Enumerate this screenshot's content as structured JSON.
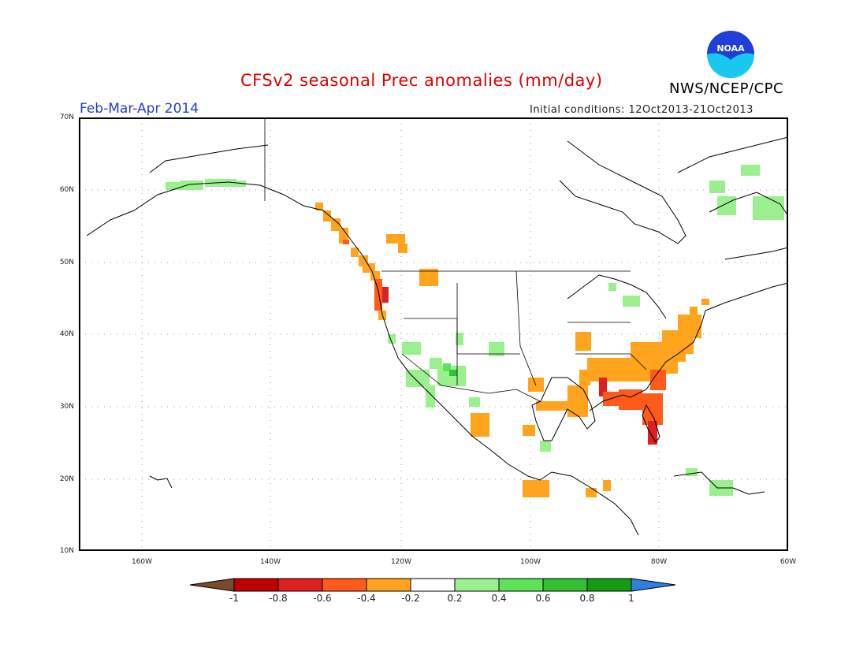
{
  "header": {
    "title": "CFSv2 seasonal Prec anomalies (mm/day)",
    "agency": "NWS/NCEP/CPC",
    "period": "Feb-Mar-Apr 2014",
    "initial_conditions": "Initial conditions: 12Oct2013-21Oct2013",
    "logo_text": "NOAA"
  },
  "axes": {
    "lat_labels": [
      "70N",
      "60N",
      "50N",
      "40N",
      "30N",
      "20N",
      "10N"
    ],
    "lon_labels": [
      "160W",
      "140W",
      "120W",
      "100W",
      "80W",
      "60W"
    ],
    "lat_range": [
      10,
      70
    ],
    "lon_range": [
      -170,
      -60
    ],
    "gridlines": "dotted"
  },
  "colorbar": {
    "labels": [
      "-1",
      "-0.8",
      "-0.6",
      "-0.4",
      "-0.2",
      "0.2",
      "0.4",
      "0.6",
      "0.8",
      "1"
    ],
    "colors": [
      "#7a4a2a",
      "#c00000",
      "#e02020",
      "#ff5a1a",
      "#ffa41c",
      "#ffffff",
      "#9af08e",
      "#5de25a",
      "#34c034",
      "#159a15",
      "#2f7fe0"
    ]
  },
  "colors": {
    "title": "#e00000",
    "period": "#1f3fd6",
    "noaa_blue": "#1f3fd6",
    "noaa_cyan": "#19c8f0"
  }
}
